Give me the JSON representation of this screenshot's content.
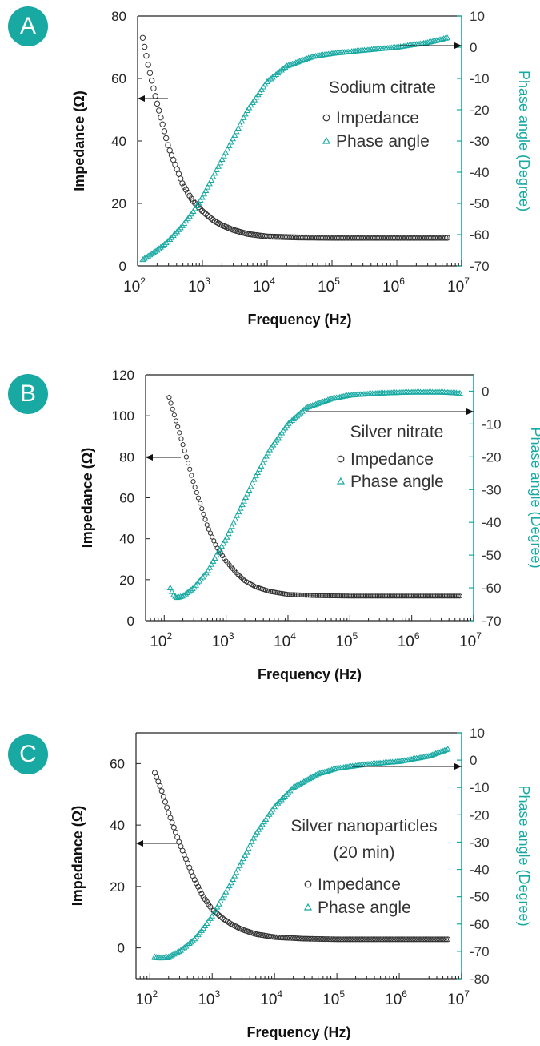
{
  "colors": {
    "accent": "#17a9a2",
    "impedance": "#333333",
    "frame": "#222222"
  },
  "chart_data": [
    {
      "type": "scatter",
      "panel": "A",
      "annotation": [
        "Sodium citrate"
      ],
      "xlabel": "Frequency (Hz)",
      "ylabel": "Impedance (Ω)",
      "y2label": "Phase angle (Degree)",
      "x_scale": "log",
      "xlim": [
        100,
        10000000
      ],
      "ylim": [
        0,
        80
      ],
      "y2lim": [
        -70,
        10
      ],
      "x_ticks": [
        "2",
        "3",
        "4",
        "5",
        "6",
        "7"
      ],
      "y_ticks": [
        "0",
        "20",
        "40",
        "60",
        "80"
      ],
      "y2_ticks": [
        "10",
        "0",
        "-10",
        "-20",
        "-30",
        "-40",
        "-50",
        "-60",
        "-70"
      ],
      "legend": {
        "position": "right",
        "impedance": "Impedance",
        "phase": "Phase angle"
      },
      "series": [
        {
          "name": "Impedance",
          "axis": "left",
          "x": [
            120,
            150,
            200,
            300,
            500,
            700,
            1000,
            1500,
            2000,
            3000,
            5000,
            10000,
            30000,
            100000,
            1000000,
            6000000
          ],
          "y": [
            73,
            63,
            52,
            38,
            26,
            21,
            17.5,
            14.5,
            13,
            11.5,
            10.2,
            9.4,
            9.1,
            9.0,
            9.0,
            9.0
          ]
        },
        {
          "name": "Phase angle",
          "axis": "right",
          "x": [
            120,
            200,
            300,
            500,
            700,
            1000,
            2000,
            3000,
            5000,
            10000,
            20000,
            50000,
            100000,
            300000,
            1000000,
            3000000,
            6000000
          ],
          "y": [
            -68,
            -65,
            -62,
            -57,
            -53,
            -48,
            -36,
            -29,
            -20,
            -11,
            -6,
            -3,
            -2,
            -1,
            0,
            1.5,
            3
          ]
        }
      ]
    },
    {
      "type": "scatter",
      "panel": "B",
      "annotation": [
        "Silver nitrate"
      ],
      "xlabel": "Frequency (Hz)",
      "ylabel": "Impedance (Ω)",
      "y2label": "Phase angle (Degree)",
      "x_scale": "log",
      "xlim": [
        50,
        10000000
      ],
      "ylim": [
        0,
        120
      ],
      "y2lim": [
        -70,
        5
      ],
      "x_ticks": [
        "2",
        "3",
        "4",
        "5",
        "6",
        "7"
      ],
      "y_ticks": [
        "0",
        "20",
        "40",
        "60",
        "80",
        "100",
        "120"
      ],
      "y2_ticks": [
        "0",
        "-10",
        "-20",
        "-30",
        "-40",
        "-50",
        "-60",
        "-70"
      ],
      "legend": {
        "position": "right",
        "impedance": "Impedance",
        "phase": "Phase angle"
      },
      "series": [
        {
          "name": "Impedance",
          "axis": "left",
          "x": [
            120,
            150,
            200,
            300,
            500,
            700,
            1000,
            1500,
            2000,
            3000,
            5000,
            10000,
            30000,
            100000,
            1000000,
            6000000
          ],
          "y": [
            109,
            99,
            86,
            67,
            46,
            36,
            29,
            23,
            19.5,
            16.5,
            14.3,
            12.8,
            12.2,
            12.0,
            12.0,
            12.0
          ]
        },
        {
          "name": "Phase angle",
          "axis": "right",
          "x": [
            125,
            140,
            160,
            200,
            300,
            500,
            700,
            1000,
            2000,
            3000,
            5000,
            10000,
            20000,
            50000,
            100000,
            300000,
            1000000,
            3000000,
            6000000
          ],
          "y": [
            -60,
            -62,
            -63,
            -62.5,
            -60,
            -55,
            -50,
            -45,
            -33,
            -26,
            -18,
            -10,
            -5,
            -2.3,
            -1.2,
            -0.6,
            -0.3,
            -0.3,
            -0.6
          ]
        }
      ]
    },
    {
      "type": "scatter",
      "panel": "C",
      "annotation": [
        "Silver nanoparticles",
        "(20 min)"
      ],
      "xlabel": "Frequency (Hz)",
      "ylabel": "Impedance (Ω)",
      "y2label": "Phase angle (Degree)",
      "x_scale": "log",
      "xlim": [
        60,
        10000000
      ],
      "ylim": [
        -10,
        70
      ],
      "y2lim": [
        -80,
        10
      ],
      "x_ticks": [
        "2",
        "3",
        "4",
        "5",
        "6",
        "7"
      ],
      "y_ticks": [
        "0",
        "20",
        "40",
        "60"
      ],
      "y2_ticks": [
        "10",
        "0",
        "-10",
        "-20",
        "-30",
        "-40",
        "-50",
        "-60",
        "-70",
        "-80"
      ],
      "legend": {
        "position": "right",
        "impedance": "Impedance",
        "phase": "Phase angle"
      },
      "series": [
        {
          "name": "Impedance",
          "axis": "left",
          "x": [
            120,
            150,
            200,
            300,
            500,
            700,
            1000,
            1500,
            2000,
            3000,
            5000,
            10000,
            30000,
            100000,
            1000000,
            6000000
          ],
          "y": [
            57,
            52,
            44,
            34,
            23,
            17,
            12.5,
            9.5,
            7.8,
            6,
            4.5,
            3.5,
            3.0,
            2.8,
            2.8,
            2.8
          ]
        },
        {
          "name": "Phase angle",
          "axis": "right",
          "x": [
            120,
            150,
            200,
            300,
            500,
            700,
            1000,
            2000,
            3000,
            5000,
            10000,
            20000,
            50000,
            100000,
            300000,
            1000000,
            3000000,
            6000000
          ],
          "y": [
            -72,
            -72.5,
            -72,
            -70,
            -66,
            -62,
            -57,
            -45,
            -37,
            -27,
            -17,
            -10,
            -5,
            -3,
            -1.5,
            -0.5,
            1.5,
            4
          ]
        }
      ]
    }
  ],
  "panels": [
    {
      "badge": "A",
      "annotation_1": "Sodium citrate",
      "annotation_2": "",
      "legend_impedance": "Impedance",
      "legend_phase": "Phase angle",
      "ylabel": "Impedance (Ω)",
      "y2label": "Phase angle (Degree)",
      "xlabel": "Frequency (Hz)"
    },
    {
      "badge": "B",
      "annotation_1": "Silver nitrate",
      "annotation_2": "",
      "legend_impedance": "Impedance",
      "legend_phase": "Phase angle",
      "ylabel": "Impedance (Ω)",
      "y2label": "Phase angle (Degree)",
      "xlabel": "Frequency (Hz)"
    },
    {
      "badge": "C",
      "annotation_1": "Silver nanoparticles",
      "annotation_2": "(20 min)",
      "legend_impedance": "Impedance",
      "legend_phase": "Phase angle",
      "ylabel": "Impedance (Ω)",
      "y2label": "Phase angle (Degree)",
      "xlabel": "Frequency (Hz)"
    }
  ],
  "x_tick_base": "10"
}
